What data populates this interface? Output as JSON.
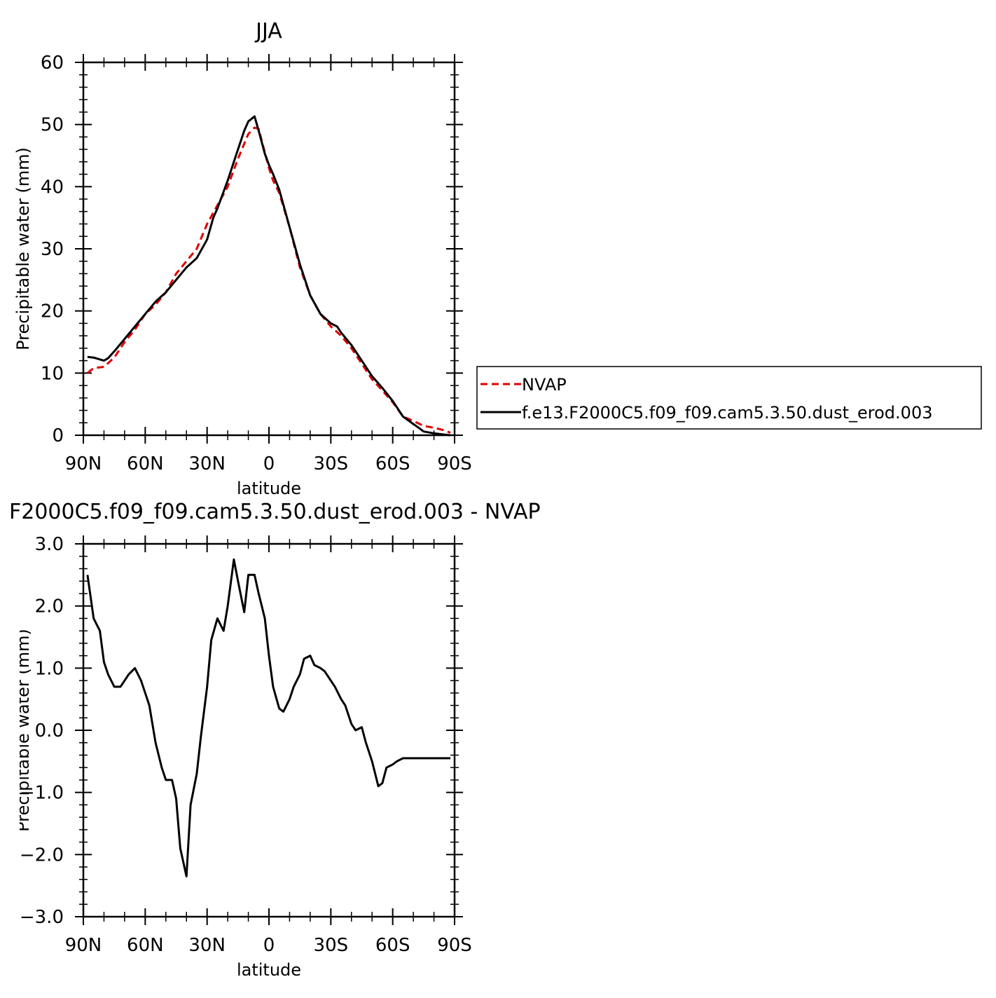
{
  "chart_data": [
    {
      "type": "line",
      "title": "JJA",
      "xlabel": "latitude",
      "ylabel": "Precipitable water (mm)",
      "x_ticks": [
        "90N",
        "60N",
        "30N",
        "0",
        "30S",
        "60S",
        "90S"
      ],
      "x_tick_values": [
        90,
        60,
        30,
        0,
        -30,
        -60,
        -90
      ],
      "y_ticks": [
        "0",
        "10",
        "20",
        "30",
        "40",
        "50",
        "60"
      ],
      "y_tick_values": [
        0,
        10,
        20,
        30,
        40,
        50,
        60
      ],
      "xlim": [
        90,
        -90
      ],
      "ylim": [
        0,
        60
      ],
      "grid": false,
      "legend_position": "right",
      "series": [
        {
          "name": "NVAP",
          "color": "#e00000",
          "dash": "dashed",
          "x": [
            88,
            85,
            80,
            75,
            70,
            65,
            60,
            55,
            50,
            45,
            40,
            35,
            30,
            25,
            20,
            15,
            10,
            7,
            5,
            2,
            0,
            -2,
            -5,
            -10,
            -15,
            -20,
            -25,
            -30,
            -35,
            -40,
            -45,
            -50,
            -55,
            -60,
            -65,
            -70,
            -75,
            -80,
            -85,
            -88
          ],
          "y": [
            10,
            10.8,
            11,
            12.5,
            15,
            17,
            19.5,
            21,
            23,
            26,
            28,
            30,
            34,
            37,
            40,
            44.5,
            48.5,
            49.5,
            49.3,
            45.5,
            43,
            41,
            39,
            33.5,
            27,
            22.5,
            19.5,
            17.5,
            16,
            14,
            11.5,
            9,
            7.2,
            5.3,
            3,
            2.3,
            1.5,
            1.2,
            0.8,
            0.4
          ]
        },
        {
          "name": "f.e13.F2000C5.f09_f09.cam5.3.50.dust_erod.003",
          "color": "#000000",
          "dash": "solid",
          "x": [
            88,
            85,
            80,
            78,
            75,
            70,
            65,
            60,
            55,
            50,
            45,
            40,
            35,
            30,
            27,
            25,
            20,
            15,
            12,
            10,
            7,
            5,
            2,
            0,
            -2,
            -5,
            -10,
            -15,
            -20,
            -25,
            -30,
            -33,
            -35,
            -40,
            -45,
            -50,
            -55,
            -60,
            -65,
            -70,
            -73,
            -75,
            -80,
            -85,
            -88
          ],
          "y": [
            12.6,
            12.5,
            12,
            12.4,
            13.5,
            15.5,
            17.5,
            19.5,
            21.5,
            23,
            25,
            27,
            28.5,
            31.5,
            35,
            36.5,
            41,
            46,
            49,
            50.5,
            51.3,
            49,
            45.3,
            43.5,
            42,
            39.5,
            33.5,
            27.5,
            22.5,
            19.5,
            18,
            17.5,
            16.5,
            14.5,
            12,
            9.5,
            7.6,
            5.5,
            3,
            1.8,
            1.1,
            0.6,
            0.3,
            0.1,
            0
          ]
        }
      ]
    },
    {
      "type": "line",
      "title": "F2000C5.f09_f09.cam5.3.50.dust_erod.003 - NVAP",
      "xlabel": "latitude",
      "ylabel": "Precipitable water (mm)",
      "x_ticks": [
        "90N",
        "60N",
        "30N",
        "0",
        "30S",
        "60S",
        "90S"
      ],
      "x_tick_values": [
        90,
        60,
        30,
        0,
        -30,
        -60,
        -90
      ],
      "y_ticks": [
        "−3.0",
        "−2.0",
        "−1.0",
        "0.0",
        "1.0",
        "2.0",
        "3.0"
      ],
      "y_tick_values": [
        -3,
        -2,
        -1,
        0,
        1,
        2,
        3
      ],
      "xlim": [
        90,
        -90
      ],
      "ylim": [
        -3,
        3
      ],
      "grid": false,
      "series": [
        {
          "name": "",
          "color": "#000000",
          "dash": "solid",
          "x": [
            88,
            85,
            82,
            80,
            78,
            75,
            72,
            70,
            68,
            65,
            62,
            60,
            58,
            55,
            52,
            50,
            47,
            45,
            43,
            40,
            38,
            35,
            33,
            30,
            28,
            25,
            22,
            20,
            17,
            15,
            12,
            10,
            7,
            5,
            2,
            0,
            -2,
            -5,
            -7,
            -10,
            -12,
            -15,
            -17,
            -20,
            -22,
            -25,
            -27,
            -30,
            -32,
            -35,
            -37,
            -40,
            -42,
            -45,
            -47,
            -50,
            -53,
            -55,
            -57,
            -60,
            -62,
            -65,
            -67,
            -70,
            -73,
            -75,
            -77,
            -80,
            -83,
            -85,
            -88
          ],
          "y": [
            2.5,
            1.8,
            1.6,
            1.1,
            0.9,
            0.7,
            0.7,
            0.8,
            0.9,
            1,
            0.8,
            0.6,
            0.4,
            -0.2,
            -0.6,
            -0.8,
            -0.8,
            -1.1,
            -1.9,
            -2.35,
            -1.2,
            -0.7,
            -0.1,
            0.7,
            1.45,
            1.8,
            1.6,
            2.0,
            2.75,
            2.4,
            1.9,
            2.5,
            2.5,
            2.2,
            1.8,
            1.2,
            0.7,
            0.35,
            0.3,
            0.5,
            0.7,
            0.9,
            1.15,
            1.2,
            1.05,
            1.0,
            0.95,
            0.8,
            0.7,
            0.5,
            0.4,
            0.1,
            0.0,
            0.05,
            -0.2,
            -0.5,
            -0.9,
            -0.85,
            -0.6,
            -0.55,
            -0.5,
            -0.45,
            -0.45,
            -0.45,
            -0.45,
            -0.45,
            -0.45,
            -0.45,
            -0.45,
            -0.45,
            -0.45
          ]
        }
      ]
    }
  ]
}
